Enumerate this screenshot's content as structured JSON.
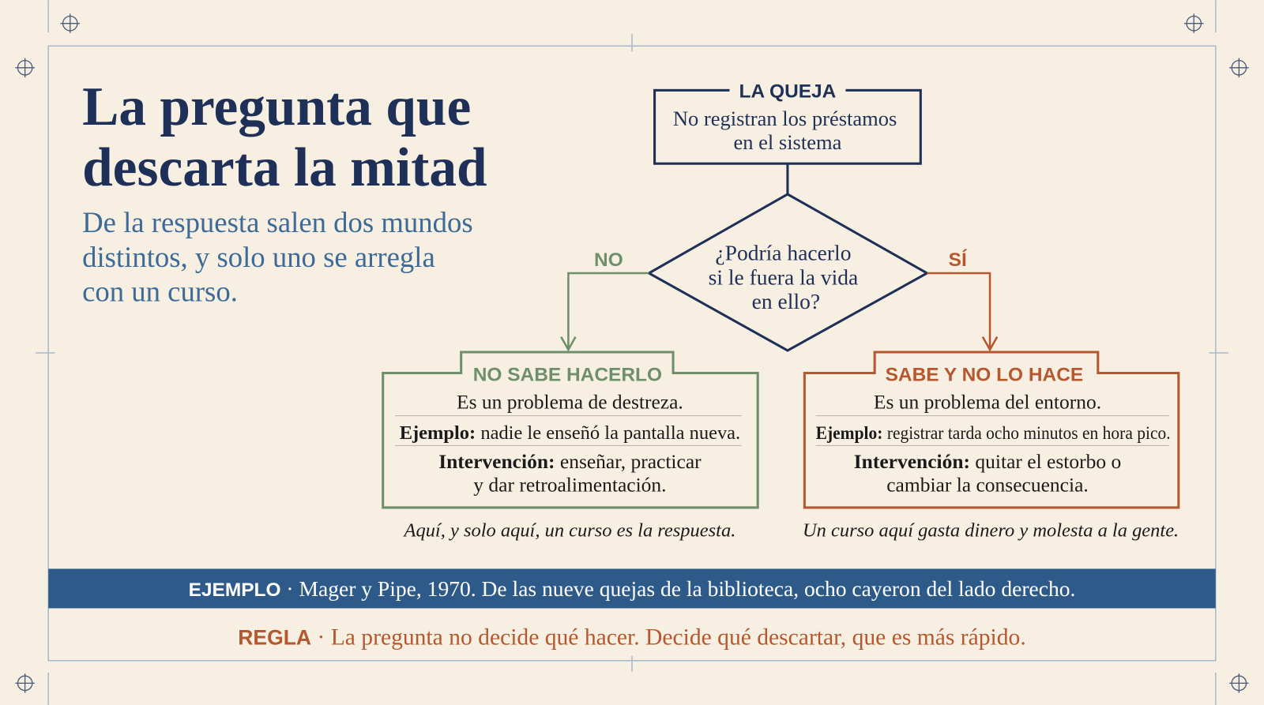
{
  "title": {
    "lines": [
      "La pregunta que",
      "descarta la mitad"
    ]
  },
  "subtitle": {
    "lines": [
      "De la respuesta salen dos mundos",
      "distintos, y solo uno se arregla",
      "con un curso."
    ]
  },
  "nodes": {
    "complaint": {
      "label": "LA QUEJA",
      "lines": [
        "No registran los préstamos",
        "en el sistema"
      ]
    },
    "question": {
      "lines": [
        "¿Podría hacerlo",
        "si le fuera la vida",
        "en ello?"
      ]
    },
    "left": {
      "branch": "NO",
      "title": "NO SABE HACERLO",
      "statement": "Es un problema de destreza.",
      "example_label": "Ejemplo:",
      "example": "nadie le enseñó la pantalla nueva.",
      "intervention_label": "Intervención:",
      "intervention_lines": [
        "enseñar, practicar",
        "y dar retroalimentación."
      ],
      "note": "Aquí, y solo aquí, un curso es la respuesta."
    },
    "right": {
      "branch": "SÍ",
      "title": "SABE Y NO LO HACE",
      "statement": "Es un problema del entorno.",
      "example_label": "Ejemplo:",
      "example": "registrar tarda ocho minutos en hora pico.",
      "intervention_label": "Intervención:",
      "intervention_lines": [
        "quitar el estorbo o",
        "cambiar la consecuencia."
      ],
      "note": "Un curso aquí gasta dinero y molesta a la gente."
    }
  },
  "footer": {
    "example": {
      "label": "EJEMPLO",
      "text": "· Mager y Pipe, 1970. De las nueve quejas de la biblioteca, ocho cayeron del lado derecho."
    },
    "rule": {
      "label": "REGLA",
      "text": "· La pregunta no decide qué hacer. Decide qué descartar, que es más rápido."
    }
  }
}
